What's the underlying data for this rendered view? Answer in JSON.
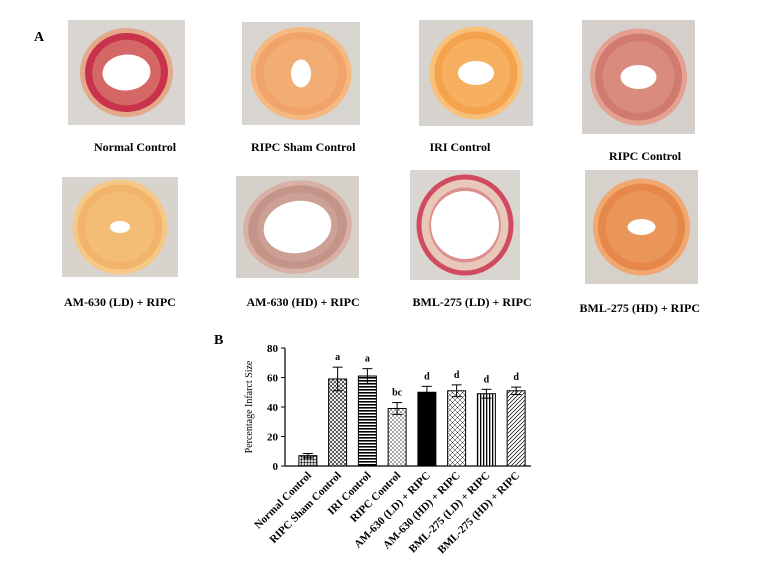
{
  "panel_a_label": "A",
  "panel_b_label": "B",
  "photos": [
    {
      "caption": "Normal Control",
      "bg": "#d9d5d0",
      "tissue": "#c8324a",
      "edge": "#e4a88a",
      "lumen": "#ffffff"
    },
    {
      "caption": "RIPC Sham Control",
      "bg": "#d8d4cf",
      "tissue": "#f0a46a",
      "edge": "#f4b880",
      "lumen": "#ffffff"
    },
    {
      "caption": "IRI Control",
      "bg": "#d6d2cd",
      "tissue": "#f4a24c",
      "edge": "#f9c07a",
      "lumen": "#ffffff"
    },
    {
      "caption": "RIPC Control",
      "bg": "#d4cfca",
      "tissue": "#d07a70",
      "edge": "#e4a090",
      "lumen": "#ffffff"
    },
    {
      "caption": "AM-630 (LD) + RIPC",
      "bg": "#d8d3cd",
      "tissue": "#f2b46a",
      "edge": "#f6c888",
      "lumen": "#ffffff"
    },
    {
      "caption": "AM-630 (HD) + RIPC",
      "bg": "#d5d0ca",
      "tissue": "#c49488",
      "edge": "#d8b0a4",
      "lumen": "#ffffff"
    },
    {
      "caption": "BML-275 (LD) + RIPC",
      "bg": "#d9d5d0",
      "tissue": "#e8c8b8",
      "edge": "#d04a60",
      "lumen": "#ffffff"
    },
    {
      "caption": "BML-275 (HD) + RIPC",
      "bg": "#d6d1cb",
      "tissue": "#e6884a",
      "edge": "#f0a870",
      "lumen": "#ffffff"
    }
  ],
  "chart_data": {
    "type": "bar",
    "ylabel": "Percentage Infarct Size",
    "ylim": [
      0,
      80
    ],
    "yticks": [
      0,
      20,
      40,
      60,
      80
    ],
    "categories": [
      "Normal Control",
      "RIPC Sham Control",
      "IRI Control",
      "RIPC Control",
      "AM-630 (LD) + RIPC",
      "AM-630 (HD) + RIPC",
      "BML-275 (LD) + RIPC",
      "BML-275 (HD) + RIPC"
    ],
    "values": [
      7,
      59,
      61,
      39,
      50,
      51,
      49,
      51
    ],
    "errors": [
      1.5,
      8,
      5,
      4,
      4,
      4,
      3,
      2.5
    ],
    "significance": [
      "",
      "a",
      "a",
      "bc",
      "d",
      "d",
      "d",
      "d"
    ],
    "patterns": [
      "dots",
      "crosshatch",
      "hstripes",
      "checker",
      "solid",
      "diagcross",
      "vstripes",
      "diagonal"
    ]
  }
}
